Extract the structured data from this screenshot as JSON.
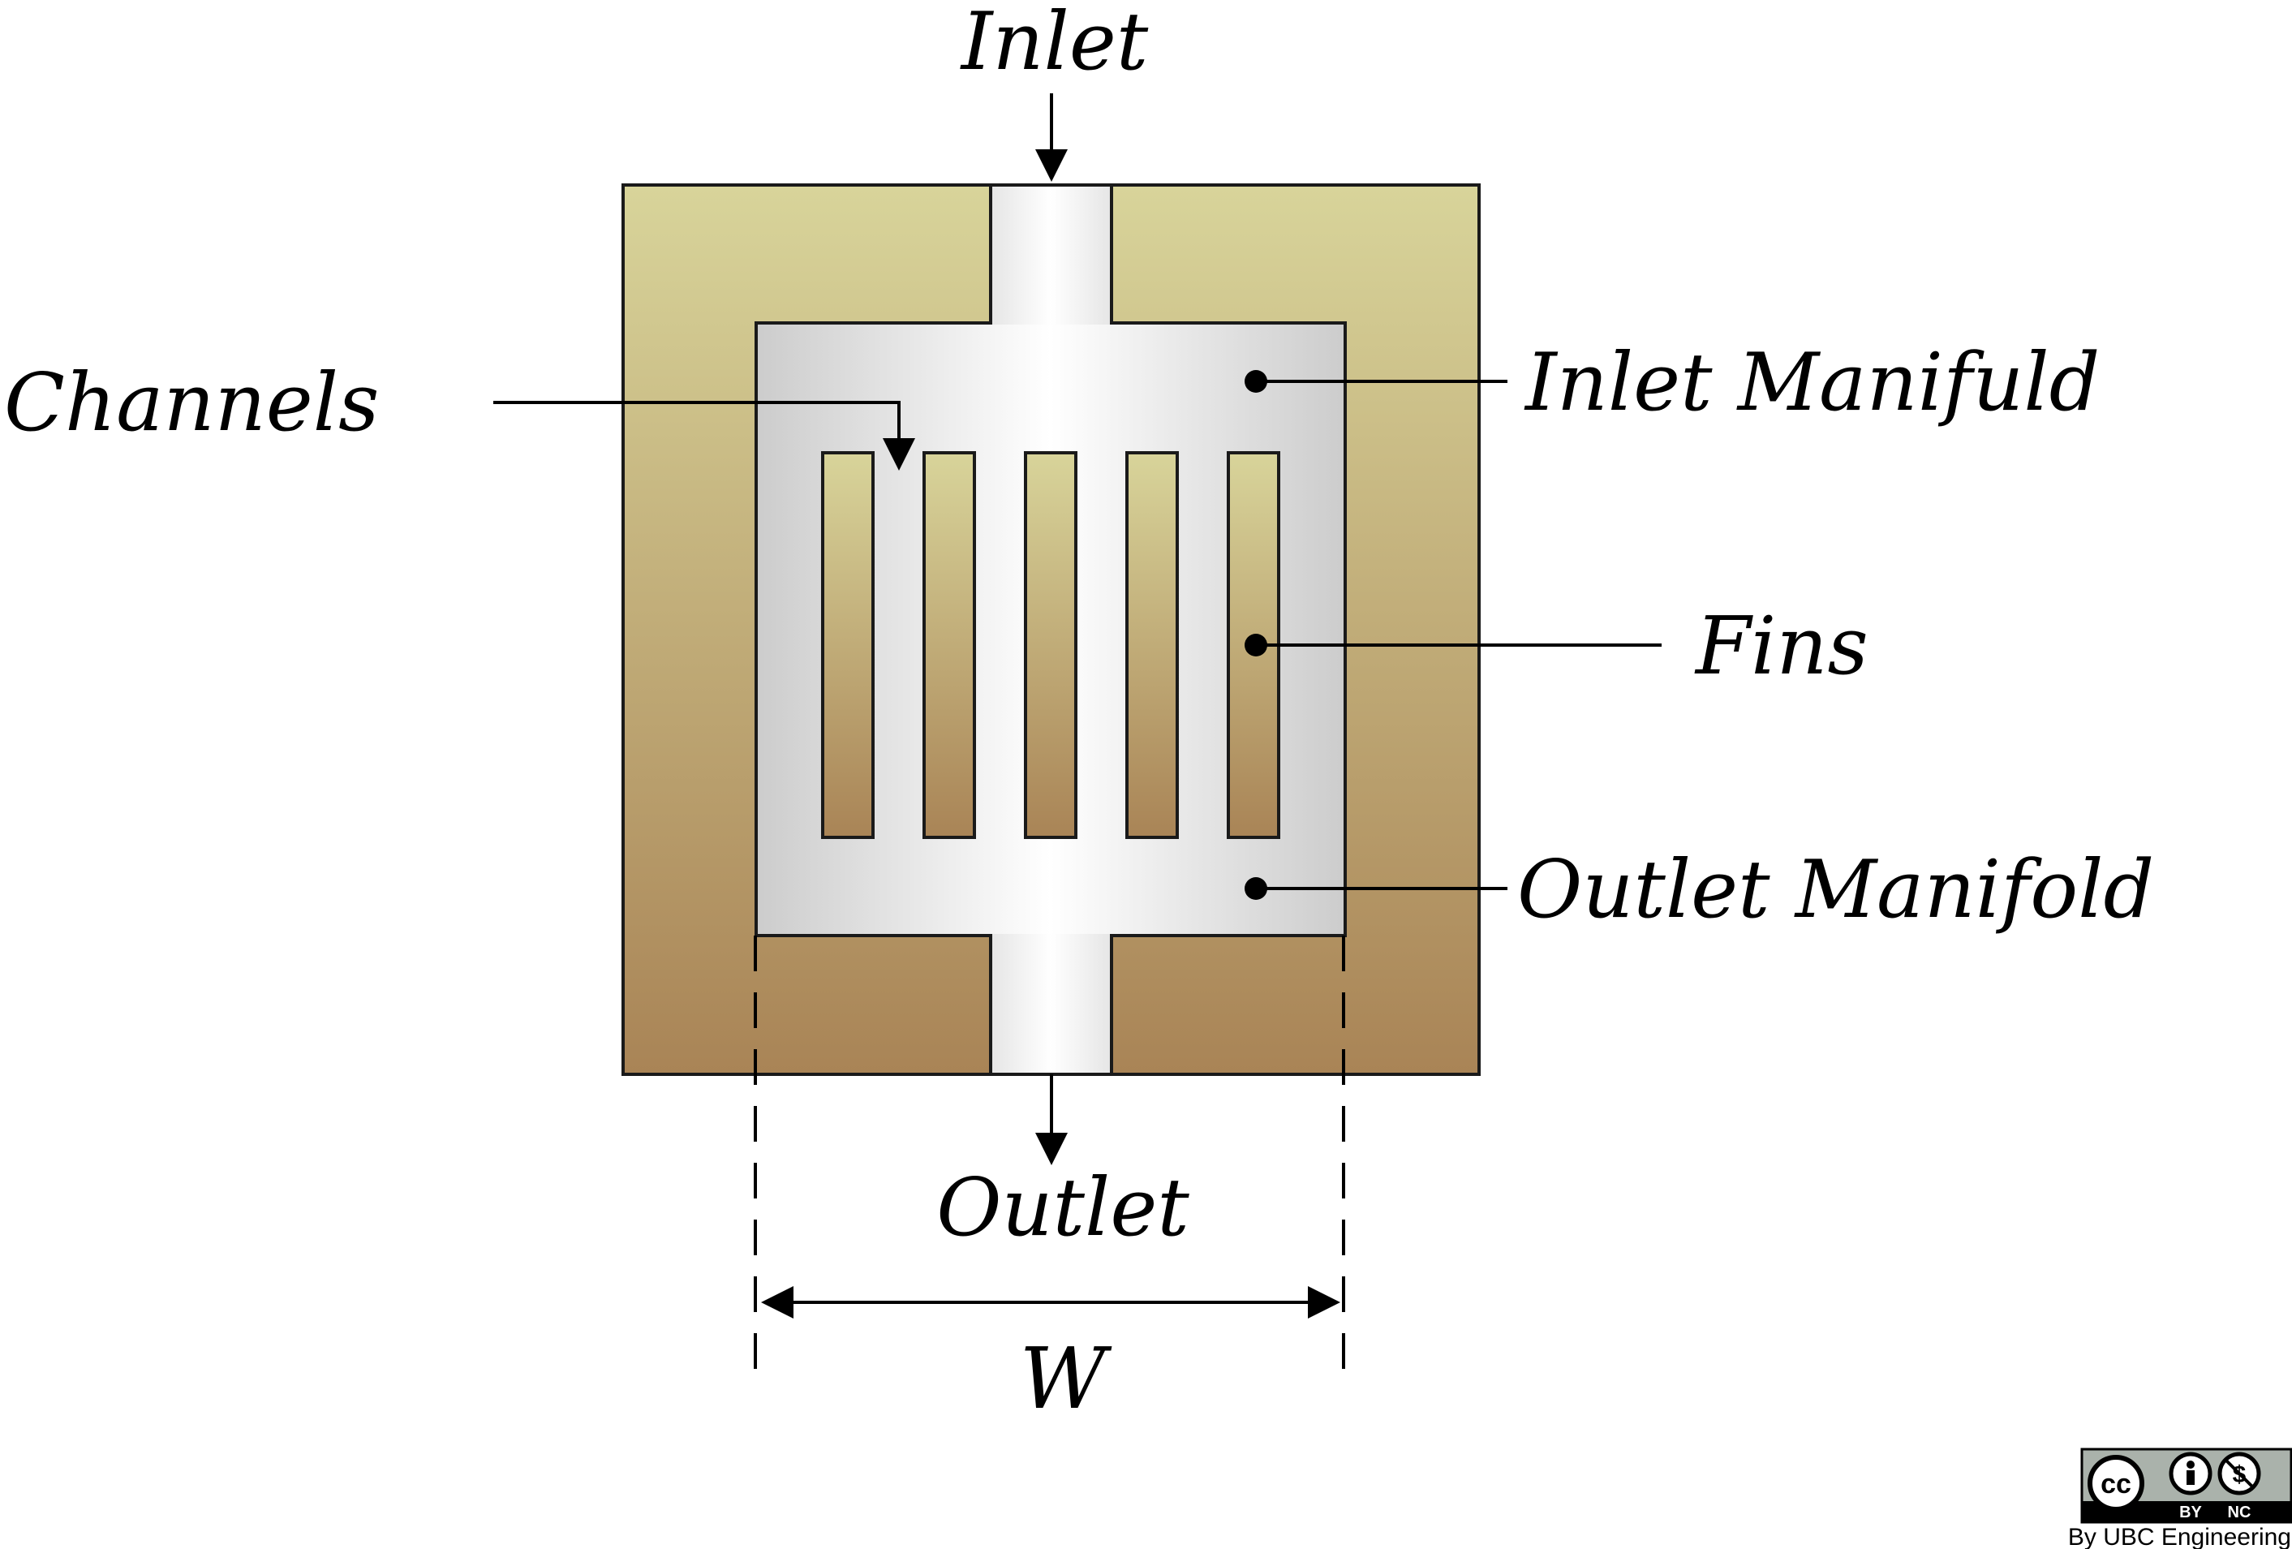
{
  "labels": {
    "inlet": "Inlet",
    "outlet": "Outlet",
    "channels": "Channels",
    "inlet_manifold": "Inlet Manifuld",
    "fins": "Fins",
    "outlet_manifold": "Outlet Manifold",
    "width": "W"
  },
  "license": {
    "cc": "cc",
    "by": "BY",
    "nc": "NC",
    "credit": "By UBC Engineering"
  },
  "colors": {
    "body_top": "#d8d49a",
    "body_bottom": "#a98456",
    "manifold_edge": "#cfcfcf",
    "manifold_center": "#ffffff",
    "outline": "#1a1a1a"
  },
  "fin_count": 5
}
